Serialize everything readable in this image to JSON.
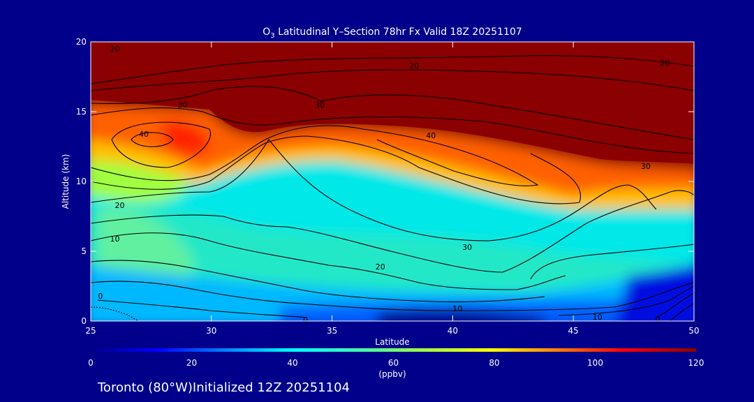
{
  "chart_data": {
    "type": "heatmap",
    "title_main": "O",
    "title_sub": "3",
    "title_rest": " Latitudinal Y–Section 78hr  Fx Valid 18Z 20251107",
    "xlabel": "Latitude",
    "ylabel": "Altitude (km)",
    "xlim": [
      25,
      50
    ],
    "ylim": [
      0,
      20
    ],
    "xticks": [
      25,
      30,
      35,
      40,
      45,
      50
    ],
    "yticks": [
      0,
      5,
      10,
      15,
      20
    ],
    "colorbar": {
      "label": "(ppbv)",
      "range": [
        0,
        120
      ],
      "ticks": [
        0,
        20,
        40,
        60,
        80,
        100,
        120
      ],
      "colors": [
        "#00008b",
        "#0000ff",
        "#0080ff",
        "#00ffff",
        "#40ffb0",
        "#a0ff40",
        "#ffff00",
        "#ff8000",
        "#ff0000",
        "#8b0000"
      ]
    },
    "footer": "Toronto (80°W)Initialized 12Z 20251104",
    "contour_labels": [
      {
        "text": "20",
        "lat": 26.0,
        "alt": 19.5
      },
      {
        "text": "20",
        "lat": 38.4,
        "alt": 18.3
      },
      {
        "text": "20",
        "lat": 48.8,
        "alt": 18.5
      },
      {
        "text": "30",
        "lat": 28.8,
        "alt": 15.5
      },
      {
        "text": "30",
        "lat": 34.5,
        "alt": 15.5
      },
      {
        "text": "30",
        "lat": 48.0,
        "alt": 11.1
      },
      {
        "text": "40",
        "lat": 27.2,
        "alt": 13.4
      },
      {
        "text": "40",
        "lat": 39.1,
        "alt": 13.3
      },
      {
        "text": "20",
        "lat": 26.2,
        "alt": 8.3
      },
      {
        "text": "10",
        "lat": 26.0,
        "alt": 5.9
      },
      {
        "text": "0",
        "lat": 25.4,
        "alt": 1.8
      },
      {
        "text": "0",
        "lat": 33.9,
        "alt": 0.1
      },
      {
        "text": "30",
        "lat": 40.6,
        "alt": 5.3
      },
      {
        "text": "20",
        "lat": 37.0,
        "alt": 3.9
      },
      {
        "text": "10",
        "lat": 40.2,
        "alt": 0.9
      },
      {
        "text": "10",
        "lat": 46.0,
        "alt": 0.3
      },
      {
        "text": "0",
        "lat": 48.5,
        "alt": -0.2
      }
    ]
  }
}
